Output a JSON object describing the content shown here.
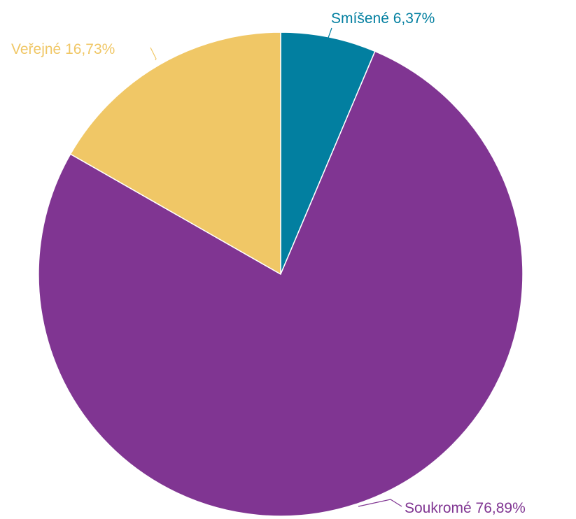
{
  "chart_data": {
    "type": "pie",
    "title": "",
    "slices": [
      {
        "label": "Smíšené",
        "value": 6.37,
        "display": "6,37%",
        "color": "#027fa0"
      },
      {
        "label": "Soukromé",
        "value": 76.89,
        "display": "76,89%",
        "color": "#803592"
      },
      {
        "label": "Veřejné",
        "value": 16.73,
        "display": "16,73%",
        "color": "#f0c766"
      }
    ],
    "start_angle_deg": 0,
    "direction": "clockwise",
    "legend": "none",
    "data_labels": "outside-with-leader-lines"
  }
}
